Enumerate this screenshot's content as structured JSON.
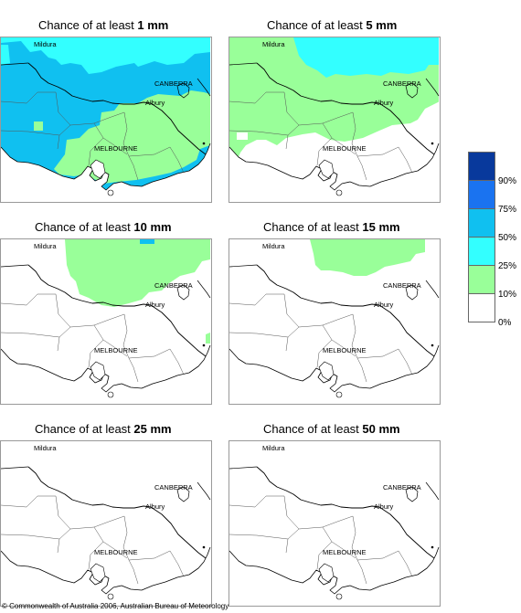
{
  "panels": [
    {
      "title_prefix": "Chance of at least ",
      "amount": "1 mm"
    },
    {
      "title_prefix": "Chance of at least ",
      "amount": "5 mm"
    },
    {
      "title_prefix": "Chance of at least ",
      "amount": "10 mm"
    },
    {
      "title_prefix": "Chance of at least ",
      "amount": "15 mm"
    },
    {
      "title_prefix": "Chance of at least ",
      "amount": "25 mm"
    },
    {
      "title_prefix": "Chance of at least ",
      "amount": "50 mm"
    }
  ],
  "places": {
    "mildura": "Mildura",
    "canberra": "CANBERRA",
    "albury": "Albury",
    "melbourne": "MELBOURNE"
  },
  "legend": {
    "labels": [
      "90%",
      "75%",
      "50%",
      "25%",
      "10%",
      "0%"
    ],
    "colors": [
      "#08399c",
      "#1a73f0",
      "#10c0f0",
      "#33ffff",
      "#99ff99",
      "#ffffff"
    ]
  },
  "copyright": "© Commonwealth of Australia 2006, Australian Bureau of Meteorology"
}
